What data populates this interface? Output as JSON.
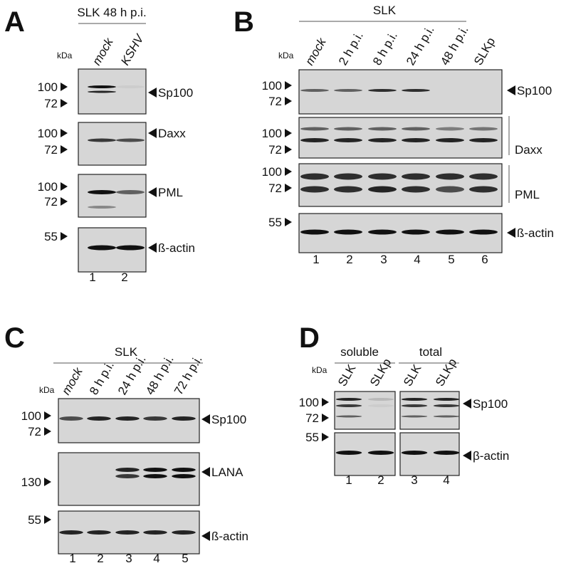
{
  "panels": [
    {
      "label": "A",
      "header": [
        "SLK 48 h p.i."
      ],
      "kda": "kDa",
      "lanes": [
        "mock",
        "KSHV"
      ],
      "lane_numbers": [
        "1",
        "2"
      ],
      "blots": [
        {
          "markers": [
            "100",
            "72"
          ],
          "target": "Sp100"
        },
        {
          "markers": [
            "100",
            "72"
          ],
          "target": "Daxx"
        },
        {
          "markers": [
            "100",
            "72"
          ],
          "target": "PML"
        },
        {
          "markers": [
            "55"
          ],
          "target": "ß-actin"
        }
      ]
    },
    {
      "label": "B",
      "header": [
        "SLK"
      ],
      "kda": "kDa",
      "lanes": [
        "mock",
        "2 h p.i.",
        "8 h p.i.",
        "24 h p.i.",
        "48 h p.i.",
        "SLKp"
      ],
      "lane_numbers": [
        "1",
        "2",
        "3",
        "4",
        "5",
        "6"
      ],
      "blots": [
        {
          "markers": [
            "100",
            "72"
          ],
          "target": "Sp100"
        },
        {
          "markers": [
            "100",
            "72"
          ],
          "target": "Daxx"
        },
        {
          "markers": [
            "100",
            "72"
          ],
          "target": "PML"
        },
        {
          "markers": [
            "55"
          ],
          "target": "ß-actin"
        }
      ]
    },
    {
      "label": "C",
      "header": [
        "SLK"
      ],
      "kda": "kDa",
      "lanes": [
        "mock",
        "8 h p.i.",
        "24 h p.i.",
        "48 h p.i.",
        "72 h p.i."
      ],
      "lane_numbers": [
        "1",
        "2",
        "3",
        "4",
        "5"
      ],
      "blots": [
        {
          "markers": [
            "100",
            "72"
          ],
          "target": "Sp100"
        },
        {
          "markers": [
            "130"
          ],
          "target": "LANA"
        },
        {
          "markers": [
            "55"
          ],
          "target": "ß-actin"
        }
      ]
    },
    {
      "label": "D",
      "header": [
        "soluble",
        "total"
      ],
      "kda": "kDa",
      "lanes": [
        "SLK",
        "SLKp",
        "SLK",
        "SLKp"
      ],
      "lane_numbers": [
        "1",
        "2",
        "3",
        "4"
      ],
      "blots": [
        {
          "markers": [
            "100",
            "72"
          ],
          "target": "Sp100"
        },
        {
          "markers": [
            "55"
          ],
          "target": "β-actin"
        }
      ]
    }
  ]
}
